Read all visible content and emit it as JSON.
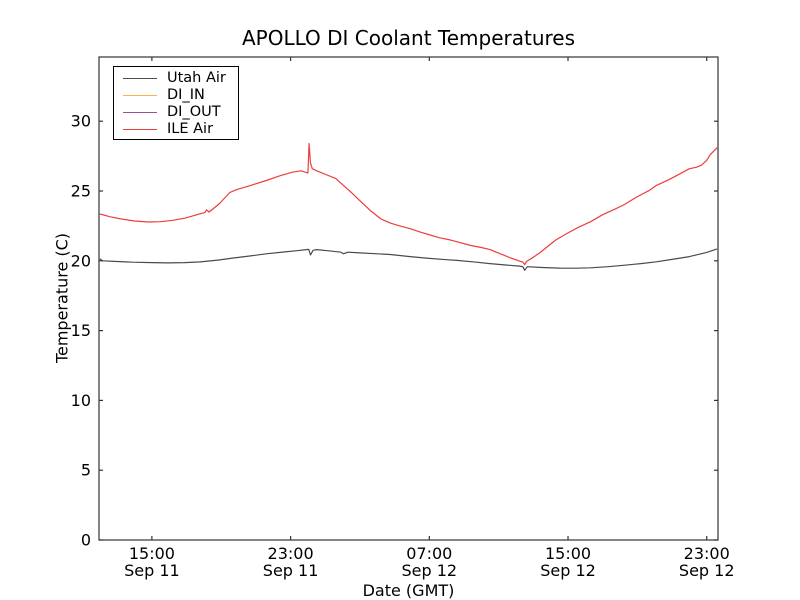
{
  "chart": {
    "title": "APOLLO DI Coolant Temperatures",
    "xlabel": "Date (GMT)",
    "ylabel": "Temperature (C)"
  },
  "chart_data": {
    "type": "line",
    "title": "APOLLO DI Coolant Temperatures",
    "xlabel": "Date (GMT)",
    "ylabel": "Temperature (C)",
    "x_unit": "hours since Sep 11 00:00 GMT",
    "xlim": [
      11.95,
      47.65
    ],
    "ylim": [
      0,
      34.6
    ],
    "grid": false,
    "legend_position": "upper left",
    "background_color": "#ffffff",
    "axis_color": "#333333",
    "yticks": [
      0,
      5,
      10,
      15,
      20,
      25,
      30
    ],
    "xticks": [
      {
        "value": 15,
        "time": "15:00",
        "date": "Sep 11"
      },
      {
        "value": 23,
        "time": "23:00",
        "date": "Sep 11"
      },
      {
        "value": 31,
        "time": "07:00",
        "date": "Sep 12"
      },
      {
        "value": 39,
        "time": "15:00",
        "date": "Sep 12"
      },
      {
        "value": 47,
        "time": "23:00",
        "date": "Sep 12"
      }
    ],
    "series": [
      {
        "name": "Utah Air",
        "color": "#4a4a4a",
        "points": [
          [
            12.0,
            20.15
          ],
          [
            12.15,
            20.0
          ],
          [
            13.0,
            19.95
          ],
          [
            13.9,
            19.9
          ],
          [
            15.0,
            19.87
          ],
          [
            15.9,
            19.85
          ],
          [
            16.9,
            19.87
          ],
          [
            17.8,
            19.92
          ],
          [
            18.8,
            20.05
          ],
          [
            19.7,
            20.2
          ],
          [
            20.7,
            20.35
          ],
          [
            21.6,
            20.5
          ],
          [
            22.6,
            20.63
          ],
          [
            23.3,
            20.72
          ],
          [
            23.9,
            20.8
          ],
          [
            24.05,
            20.82
          ],
          [
            24.15,
            20.42
          ],
          [
            24.3,
            20.75
          ],
          [
            24.5,
            20.8
          ],
          [
            25.2,
            20.72
          ],
          [
            25.9,
            20.62
          ],
          [
            26.05,
            20.5
          ],
          [
            26.3,
            20.62
          ],
          [
            27.0,
            20.57
          ],
          [
            28.0,
            20.5
          ],
          [
            28.75,
            20.45
          ],
          [
            29.9,
            20.3
          ],
          [
            31.0,
            20.17
          ],
          [
            32.0,
            20.08
          ],
          [
            32.6,
            20.03
          ],
          [
            33.5,
            19.93
          ],
          [
            34.5,
            19.8
          ],
          [
            35.4,
            19.7
          ],
          [
            36.2,
            19.62
          ],
          [
            36.4,
            19.58
          ],
          [
            36.5,
            19.32
          ],
          [
            36.65,
            19.58
          ],
          [
            37.5,
            19.52
          ],
          [
            38.5,
            19.48
          ],
          [
            39.5,
            19.47
          ],
          [
            40.3,
            19.5
          ],
          [
            41.3,
            19.58
          ],
          [
            42.2,
            19.68
          ],
          [
            43.2,
            19.8
          ],
          [
            44.1,
            19.93
          ],
          [
            45.0,
            20.1
          ],
          [
            46.0,
            20.3
          ],
          [
            47.0,
            20.6
          ],
          [
            47.6,
            20.85
          ]
        ]
      },
      {
        "name": "DI_IN",
        "color": "#ffb04d",
        "points": []
      },
      {
        "name": "DI_OUT",
        "color": "#9b4f9b",
        "points": []
      },
      {
        "name": "ILE Air",
        "color": "#ed3d3d",
        "points": [
          [
            12.0,
            23.35
          ],
          [
            12.6,
            23.15
          ],
          [
            13.2,
            23.0
          ],
          [
            14.0,
            22.85
          ],
          [
            14.8,
            22.78
          ],
          [
            15.5,
            22.8
          ],
          [
            16.2,
            22.9
          ],
          [
            16.9,
            23.05
          ],
          [
            17.6,
            23.3
          ],
          [
            18.05,
            23.45
          ],
          [
            18.15,
            23.65
          ],
          [
            18.3,
            23.5
          ],
          [
            18.9,
            24.1
          ],
          [
            19.5,
            24.9
          ],
          [
            19.9,
            25.1
          ],
          [
            20.7,
            25.4
          ],
          [
            21.6,
            25.75
          ],
          [
            22.4,
            26.1
          ],
          [
            23.1,
            26.35
          ],
          [
            23.6,
            26.45
          ],
          [
            23.85,
            26.35
          ],
          [
            24.0,
            26.3
          ],
          [
            24.07,
            28.4
          ],
          [
            24.15,
            27.0
          ],
          [
            24.25,
            26.6
          ],
          [
            24.5,
            26.45
          ],
          [
            24.7,
            26.35
          ],
          [
            25.1,
            26.15
          ],
          [
            25.6,
            25.9
          ],
          [
            26.0,
            25.45
          ],
          [
            26.5,
            24.9
          ],
          [
            27.0,
            24.3
          ],
          [
            27.6,
            23.6
          ],
          [
            28.2,
            23.0
          ],
          [
            28.75,
            22.7
          ],
          [
            29.3,
            22.5
          ],
          [
            29.9,
            22.3
          ],
          [
            30.5,
            22.05
          ],
          [
            31.05,
            21.85
          ],
          [
            31.6,
            21.65
          ],
          [
            32.2,
            21.5
          ],
          [
            32.8,
            21.3
          ],
          [
            33.4,
            21.1
          ],
          [
            34.0,
            20.95
          ],
          [
            34.5,
            20.8
          ],
          [
            35.1,
            20.5
          ],
          [
            35.7,
            20.2
          ],
          [
            36.2,
            19.98
          ],
          [
            36.4,
            19.9
          ],
          [
            36.5,
            19.72
          ],
          [
            36.6,
            19.95
          ],
          [
            37.0,
            20.25
          ],
          [
            37.4,
            20.6
          ],
          [
            38.3,
            21.5
          ],
          [
            39.0,
            22.0
          ],
          [
            39.6,
            22.4
          ],
          [
            40.3,
            22.8
          ],
          [
            41.0,
            23.3
          ],
          [
            41.7,
            23.7
          ],
          [
            42.2,
            24.0
          ],
          [
            43.0,
            24.6
          ],
          [
            43.7,
            25.05
          ],
          [
            44.1,
            25.4
          ],
          [
            44.8,
            25.8
          ],
          [
            45.4,
            26.2
          ],
          [
            46.0,
            26.6
          ],
          [
            46.4,
            26.7
          ],
          [
            46.7,
            26.85
          ],
          [
            47.0,
            27.2
          ],
          [
            47.2,
            27.6
          ],
          [
            47.6,
            28.1
          ]
        ]
      }
    ]
  }
}
